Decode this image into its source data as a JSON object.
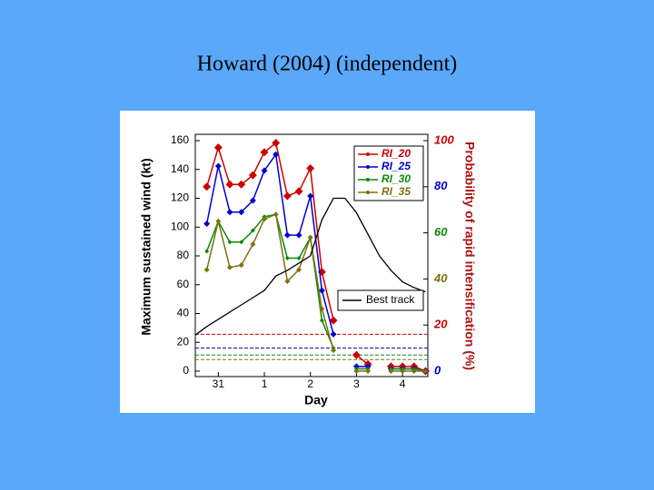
{
  "title": "Howard (2004) (independent)",
  "chart_data": {
    "type": "line",
    "x_label": "Day",
    "y_label": "Maximum sustained wind (kt)",
    "y2_label": "Probability of rapid intensification (%)",
    "y2_label_color": "#b01010",
    "x": [
      -0.5,
      -0.25,
      0,
      0.25,
      0.5,
      0.75,
      1,
      1.25,
      1.5,
      1.75,
      2,
      2.25,
      2.5,
      2.75,
      3,
      3.25,
      3.5,
      3.75,
      4,
      4.25,
      4.5
    ],
    "xlim": [
      -0.5,
      4.55
    ],
    "xticks": [
      {
        "value": 0,
        "label": "31"
      },
      1,
      2,
      3,
      4
    ],
    "ylim": [
      0,
      160
    ],
    "yticks": [
      0,
      20,
      40,
      60,
      80,
      100,
      120,
      140,
      160
    ],
    "y2lim": [
      0,
      100
    ],
    "y2ticks": [
      0,
      20,
      40,
      60,
      80,
      100
    ],
    "y2tick_colors": [
      "#0000cc",
      "#cc0000",
      "#807010",
      "#0a8a0a",
      "#0000cc",
      "#cc0000"
    ],
    "series": [
      {
        "name": "RI_20",
        "color": "#cc0000",
        "axis": "y2",
        "values": [
          null,
          80,
          97,
          81,
          81,
          85,
          95,
          99,
          76,
          78,
          88,
          43,
          22,
          null,
          7,
          3,
          null,
          2,
          2,
          2,
          0
        ]
      },
      {
        "name": "RI_25",
        "color": "#0000cc",
        "axis": "y2",
        "values": [
          null,
          64,
          89,
          69,
          69,
          74,
          87,
          94,
          59,
          59,
          76,
          35,
          16,
          null,
          2,
          2,
          null,
          1,
          1,
          1,
          0
        ]
      },
      {
        "name": "RI_30",
        "color": "#0a8a0a",
        "axis": "y2",
        "values": [
          null,
          52,
          65,
          56,
          56,
          61,
          67,
          68,
          49,
          49,
          58,
          22,
          10,
          null,
          1,
          1,
          null,
          1,
          1,
          1,
          0
        ]
      },
      {
        "name": "RI_35",
        "color": "#807010",
        "axis": "y2",
        "values": [
          null,
          44,
          65,
          45,
          46,
          55,
          66,
          68,
          39,
          44,
          58,
          27,
          9,
          null,
          0,
          0,
          null,
          0,
          0,
          0,
          0
        ]
      },
      {
        "name": "Best track",
        "color": "#000000",
        "axis": "y",
        "values": [
          25,
          31,
          36,
          41,
          46,
          51,
          56,
          66,
          70,
          75,
          80,
          105,
          120,
          120,
          110,
          95,
          80,
          70,
          62,
          58,
          55
        ]
      }
    ],
    "reference_lines": [
      {
        "color": "#cc0000",
        "value": 16
      },
      {
        "color": "#0000cc",
        "value": 10
      },
      {
        "color": "#0a8a0a",
        "value": 7
      },
      {
        "color": "#807010",
        "value": 5
      }
    ]
  }
}
